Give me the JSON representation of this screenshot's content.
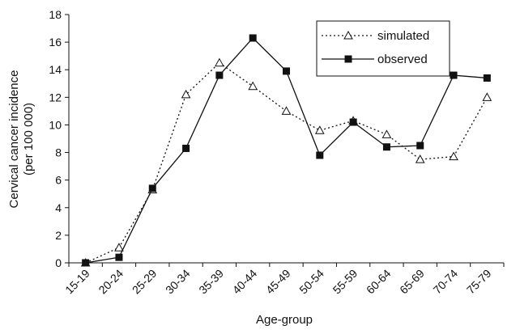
{
  "chart_data": {
    "type": "line",
    "title": "",
    "xlabel": "Age-group",
    "ylabel_line1": "Cervical cancer incidence",
    "ylabel_line2": "(per 100 000)",
    "categories": [
      "15-19",
      "20-24",
      "25-29",
      "30-34",
      "35-39",
      "40-44",
      "45-49",
      "50-54",
      "55-59",
      "60-64",
      "65-69",
      "70-74",
      "75-79"
    ],
    "ylim": [
      0,
      18
    ],
    "yticks": [
      0,
      2,
      4,
      6,
      8,
      10,
      12,
      14,
      16,
      18
    ],
    "grid": false,
    "legend_position": "top-right",
    "series": [
      {
        "name": "simulated",
        "line_style": "dotted",
        "marker": "open-triangle",
        "color": "#111111",
        "values": [
          0,
          1.1,
          5.3,
          12.2,
          14.5,
          12.8,
          11.0,
          9.6,
          10.3,
          9.3,
          7.5,
          7.7,
          12.0
        ]
      },
      {
        "name": "observed",
        "line_style": "solid",
        "marker": "filled-square",
        "color": "#111111",
        "values": [
          0,
          0.4,
          5.4,
          8.3,
          13.6,
          16.3,
          13.9,
          7.8,
          10.2,
          8.4,
          8.5,
          13.6,
          13.4
        ]
      }
    ]
  }
}
